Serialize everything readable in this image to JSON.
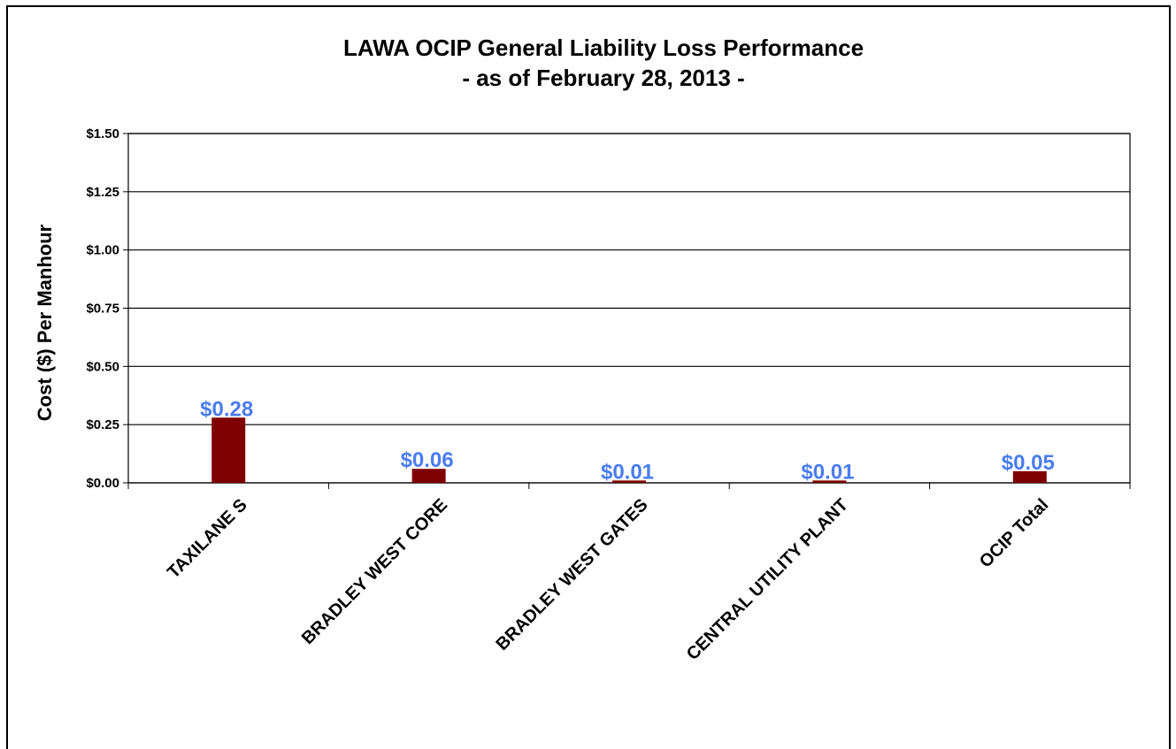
{
  "chart_data": {
    "type": "bar",
    "title": "LAWA OCIP General Liability Loss Performance",
    "subtitle": "- as of February 28, 2013 -",
    "y_label": "Cost ($) Per Manhour",
    "categories": [
      "TAXILANE S",
      "BRADLEY WEST CORE",
      "BRADLEY WEST GATES",
      "CENTRAL UTILITY PLANT",
      "OCIP Total"
    ],
    "values": [
      0.28,
      0.06,
      0.01,
      0.01,
      0.05
    ],
    "value_labels": [
      "$0.28",
      "$0.06",
      "$0.01",
      "$0.01",
      "$0.05"
    ],
    "color": "#7f0000",
    "label_color": "#4a7cf0",
    "ylim": [
      0,
      1.5
    ],
    "yticks": [
      {
        "value": 0,
        "label": "$0.00"
      },
      {
        "value": 0.25,
        "label": "$0.25"
      },
      {
        "value": 0.5,
        "label": "$0.50"
      },
      {
        "value": 0.75,
        "label": "$0.75"
      },
      {
        "value": 1,
        "label": "$1.00"
      },
      {
        "value": 1.25,
        "label": "$1.25"
      },
      {
        "value": 1.5,
        "label": "$1.50"
      }
    ],
    "grid": true
  }
}
